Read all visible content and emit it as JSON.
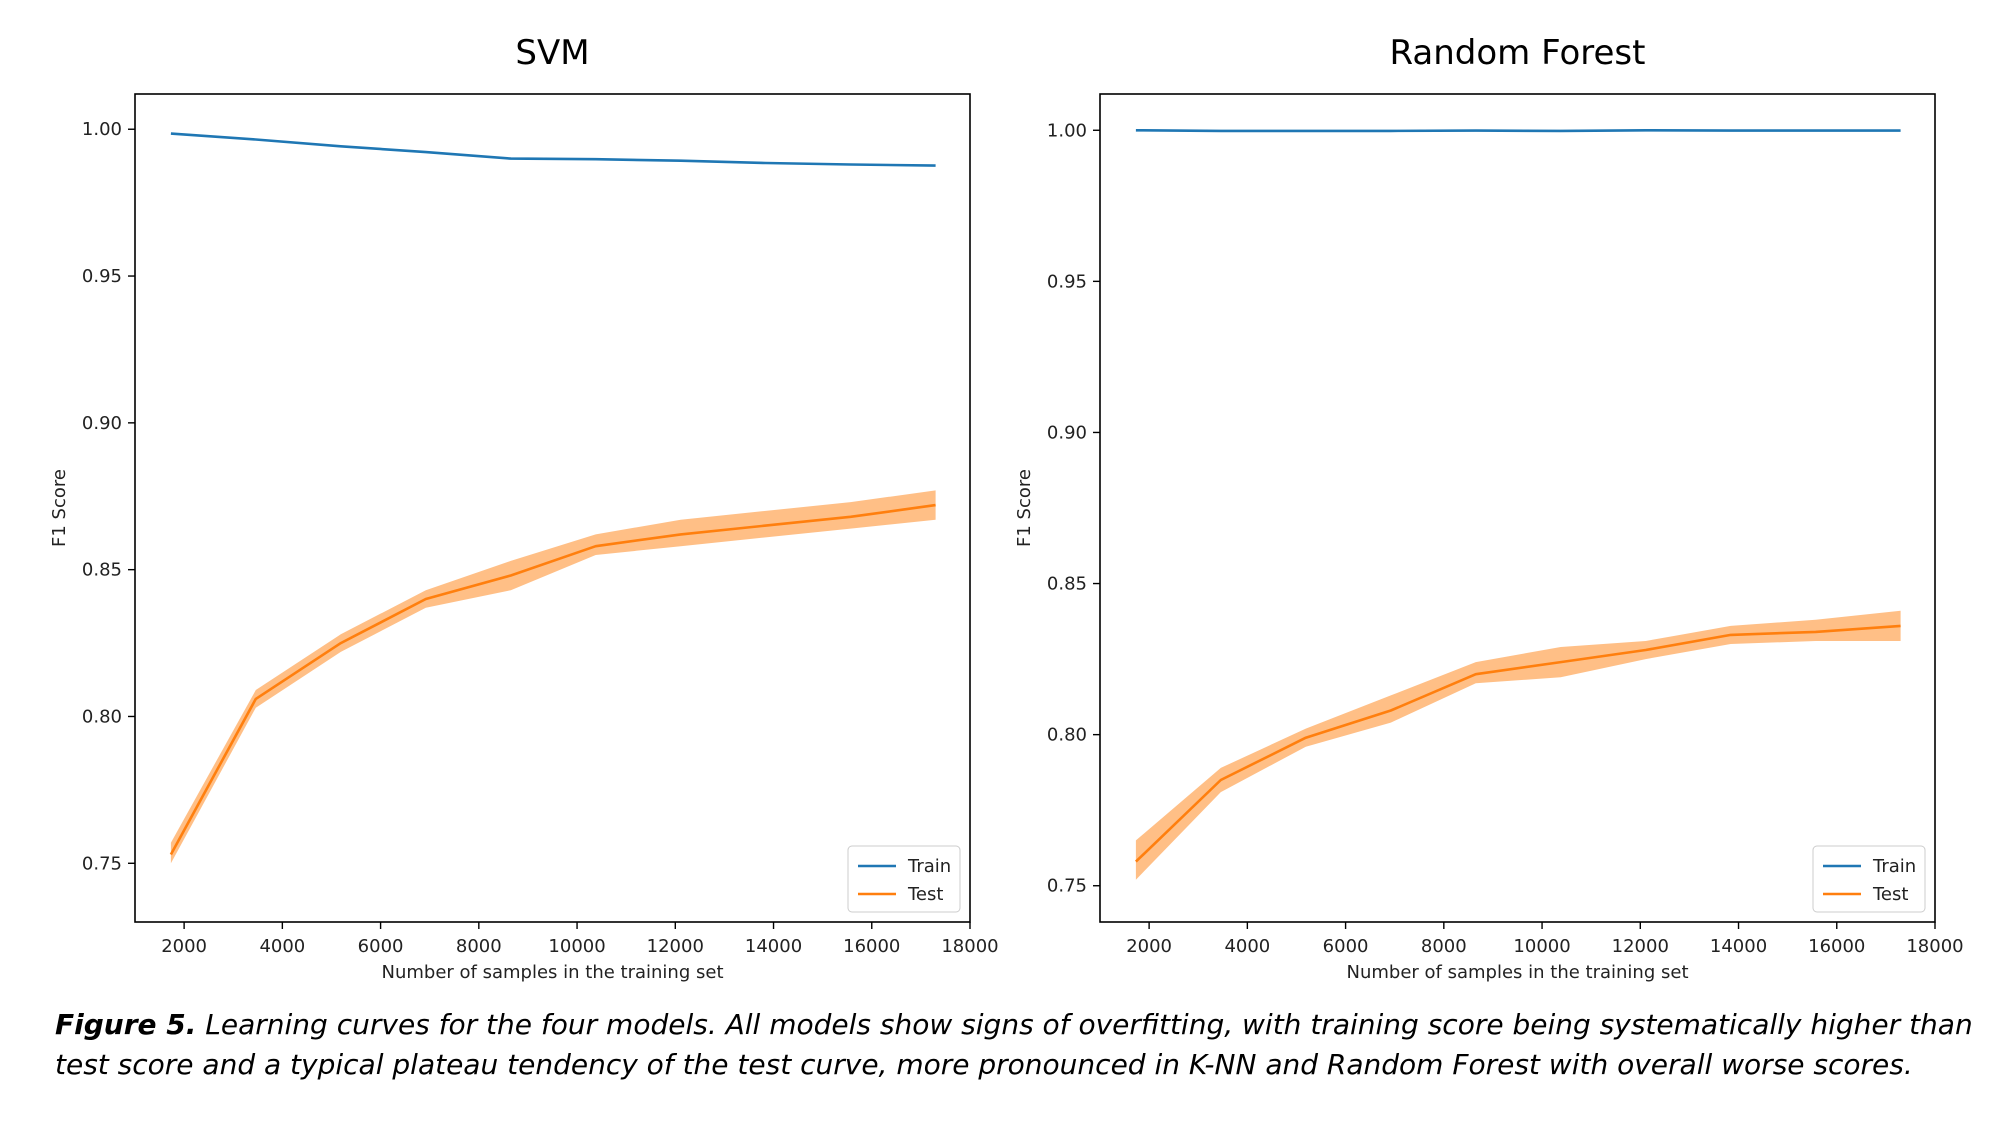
{
  "chart_data": [
    {
      "type": "line",
      "title": "SVM",
      "xlabel": "Number of samples in the training set",
      "ylabel": "F1 Score",
      "xlim": [
        1000,
        18000
      ],
      "ylim": [
        0.73,
        1.012
      ],
      "xticks": [
        2000,
        4000,
        6000,
        8000,
        10000,
        12000,
        14000,
        16000,
        18000
      ],
      "yticks": [
        0.75,
        0.8,
        0.85,
        0.9,
        0.95,
        1.0
      ],
      "ytick_labels": [
        "0.75",
        "0.80",
        "0.85",
        "0.90",
        "0.95",
        "1.00"
      ],
      "grid": false,
      "legend": "lower-right",
      "x": [
        1730,
        3460,
        5190,
        6920,
        8650,
        10380,
        12110,
        13840,
        15570,
        17300
      ],
      "series": [
        {
          "name": "Train",
          "color": "#1f77b4",
          "values": [
            0.9985,
            0.9965,
            0.9942,
            0.9922,
            0.99,
            0.9898,
            0.9893,
            0.9885,
            0.988,
            0.9876
          ],
          "band_lower": [],
          "band_upper": []
        },
        {
          "name": "Test",
          "color": "#ff7f0e",
          "values": [
            0.753,
            0.806,
            0.825,
            0.84,
            0.848,
            0.858,
            0.862,
            0.865,
            0.868,
            0.872
          ],
          "band_lower": [
            0.75,
            0.803,
            0.822,
            0.837,
            0.843,
            0.855,
            0.858,
            0.861,
            0.864,
            0.867
          ],
          "band_upper": [
            0.757,
            0.809,
            0.828,
            0.843,
            0.853,
            0.862,
            0.867,
            0.87,
            0.873,
            0.877
          ]
        }
      ]
    },
    {
      "type": "line",
      "title": "Random Forest",
      "xlabel": "Number of samples in the training set",
      "ylabel": "F1 Score",
      "xlim": [
        1000,
        18000
      ],
      "ylim": [
        0.738,
        1.012
      ],
      "xticks": [
        2000,
        4000,
        6000,
        8000,
        10000,
        12000,
        14000,
        16000,
        18000
      ],
      "yticks": [
        0.75,
        0.8,
        0.85,
        0.9,
        0.95,
        1.0
      ],
      "ytick_labels": [
        "0.75",
        "0.80",
        "0.85",
        "0.90",
        "0.95",
        "1.00"
      ],
      "grid": false,
      "legend": "lower-right",
      "x": [
        1730,
        3460,
        5190,
        6920,
        8650,
        10380,
        12110,
        13840,
        15570,
        17300
      ],
      "series": [
        {
          "name": "Train",
          "color": "#1f77b4",
          "values": [
            1.0,
            0.9998,
            0.9998,
            0.9998,
            0.9999,
            0.9998,
            1.0,
            0.9999,
            0.9999,
            0.9999
          ],
          "band_lower": [],
          "band_upper": []
        },
        {
          "name": "Test",
          "color": "#ff7f0e",
          "values": [
            0.758,
            0.785,
            0.799,
            0.808,
            0.82,
            0.824,
            0.828,
            0.833,
            0.834,
            0.836
          ],
          "band_lower": [
            0.752,
            0.781,
            0.796,
            0.804,
            0.817,
            0.819,
            0.825,
            0.83,
            0.831,
            0.831
          ],
          "band_upper": [
            0.765,
            0.789,
            0.802,
            0.813,
            0.824,
            0.829,
            0.831,
            0.836,
            0.838,
            0.841
          ]
        }
      ]
    }
  ],
  "caption": {
    "label": "Figure 5.",
    "text": " Learning curves for the four models. All models show signs of overfitting, with training score being systematically higher than test score and a typical plateau tendency of the test curve, more pronounced in K-NN and Random Forest with overall worse scores."
  }
}
